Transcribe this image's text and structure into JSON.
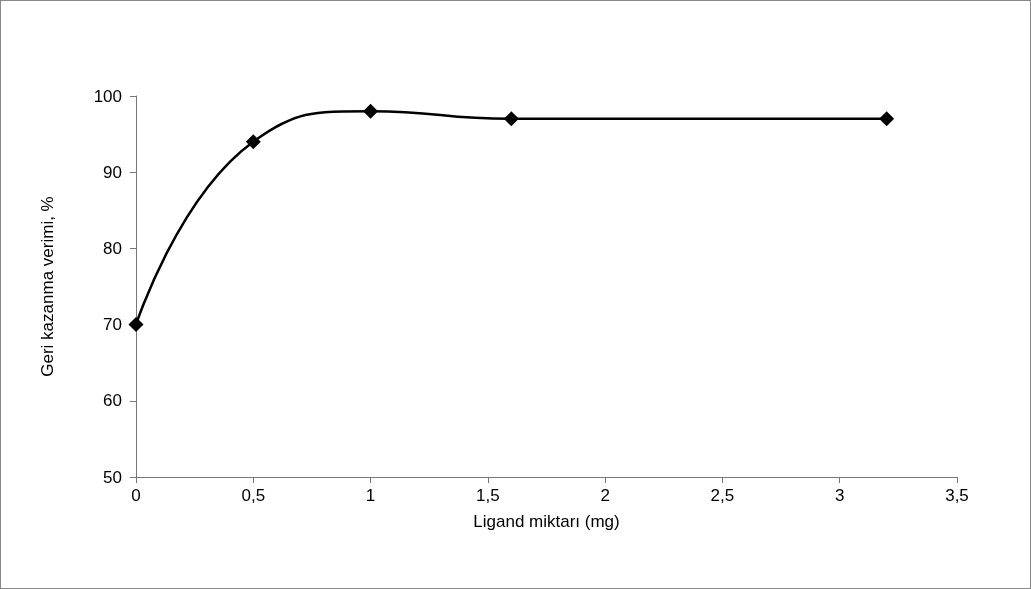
{
  "chart_data": {
    "type": "line",
    "xlabel": "Ligand miktarı (mg)",
    "ylabel": "Geri kazanma verimi, %",
    "x": [
      0,
      0.5,
      1,
      1.6,
      3.2
    ],
    "series": [
      {
        "color": "#000000",
        "values": [
          70,
          94,
          98,
          97,
          97
        ]
      }
    ],
    "xlim": [
      0,
      3.5
    ],
    "xticks": [
      0,
      {
        "value": 0.5,
        "label": "0,5"
      },
      1,
      {
        "value": 1.5,
        "label": "1,5"
      },
      2,
      {
        "value": 2.5,
        "label": "2,5"
      },
      3,
      {
        "value": 3.5,
        "label": "3,5"
      }
    ],
    "ylim": [
      50,
      100
    ],
    "yticks": [
      50,
      60,
      70,
      80,
      90,
      100
    ],
    "grid": false,
    "marker": "diamond",
    "line_style": "solid"
  }
}
